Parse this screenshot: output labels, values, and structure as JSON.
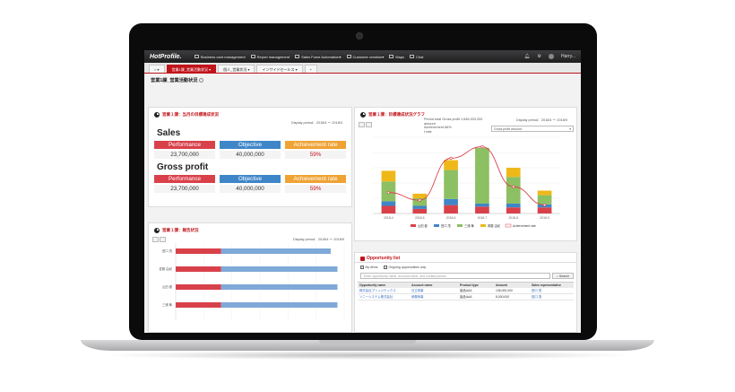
{
  "nav": {
    "logo": "HotProfile.",
    "items": [
      "Business card management",
      "Report management",
      "Sales Force Automation",
      "Customer creation",
      "Maps",
      "Chat"
    ],
    "user": "Harry..."
  },
  "tabs": [
    "営業1課_営業活動状況",
    "個人_営業状況",
    "インサイドセールス"
  ],
  "page_title": "営業1課_営業活動状況",
  "panel1": {
    "title": "営業１課：当月の目標達成状況",
    "period": "Display period：2018/4 ～ 2018/4",
    "sales_label": "Sales",
    "gross_label": "Gross profit",
    "headers": {
      "performance": "Performance",
      "objective": "Objective",
      "rate": "Achievement rate"
    },
    "sales": {
      "performance": "23,700,000",
      "objective": "40,000,000",
      "rate": "59%"
    },
    "gross": {
      "performance": "23,700,000",
      "objective": "40,000,000",
      "rate": "59%"
    }
  },
  "panel2": {
    "title": "営業１課：目標達成状況グラフ",
    "period": "Display period：2018/4 ～ 2018/9",
    "summary": [
      "Period total   Gross profit   1,646,933,333",
      "amount",
      "Achievement   66%",
      "t rate"
    ],
    "select": "Gross profit amount",
    "legend": [
      "山田 健",
      "田口 茂",
      "三浦 隼",
      "斉藤 由紀",
      "Achievement rate"
    ],
    "colors": {
      "yamada": "#d9414a",
      "taguchi": "#3f86c8",
      "miura": "#8cc063",
      "saito": "#efb81a",
      "rate": "#d9414a"
    }
  },
  "chart_data": {
    "type": "bar",
    "stacked": true,
    "categories": [
      "2018-4",
      "2018-5",
      "2018-6",
      "2018-7",
      "2018-8",
      "2018-9"
    ],
    "ylim": [
      0,
      100
    ],
    "y2lim": [
      0,
      80
    ],
    "series": [
      {
        "name": "山田 健",
        "values": [
          10,
          6,
          11,
          9,
          8,
          8
        ]
      },
      {
        "name": "田口 茂",
        "values": [
          6,
          4,
          8,
          4,
          5,
          4
        ]
      },
      {
        "name": "三浦 隼",
        "values": [
          26,
          10,
          38,
          73,
          35,
          12
        ]
      },
      {
        "name": "斉藤 由紀",
        "values": [
          14,
          6,
          13,
          0,
          12,
          6
        ]
      },
      {
        "name": "Achievement rate",
        "values": [
          22,
          14,
          58,
          70,
          28,
          9
        ]
      }
    ]
  },
  "panel3": {
    "title": "営業１課：報告状況",
    "period": "Display period：2018/4 ～ 2018/9",
    "rows": [
      "田口 茂",
      "佐藤 由紀",
      "山田 健",
      "三浦 隼"
    ],
    "red_fraction": [
      0.27,
      0.27,
      0.27,
      0.27
    ],
    "total_fraction": [
      0.92,
      0.96,
      0.96,
      0.96
    ]
  },
  "opportunity": {
    "title": "Opportunity list",
    "filters": [
      "My items",
      "Ongoing opportunities only"
    ],
    "search_placeholder": "Enter opportunity name, account name, and contact person",
    "search_button": "Search",
    "columns": [
      "Opportunity name",
      "Account name",
      "Product type",
      "Amount",
      "Sales representative"
    ],
    "rows": [
      [
        "株式会社ブリッジテックス",
        "日立商事",
        "製品AAA",
        "136,000,000",
        "田口 茂"
      ],
      [
        "ソニーシステム株式会社",
        "伊藤商事",
        "製品AAA",
        "8,000,000",
        "田口 茂"
      ]
    ]
  }
}
